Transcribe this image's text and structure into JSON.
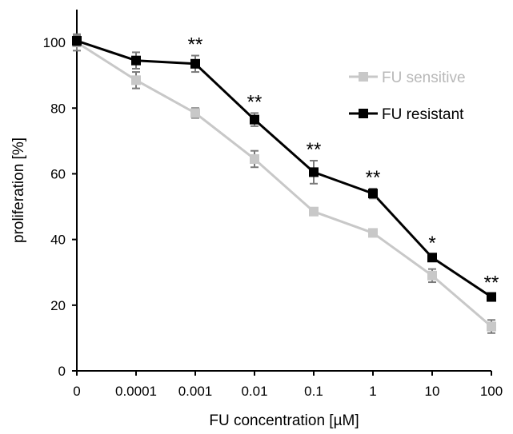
{
  "chart_data": {
    "type": "line",
    "title": "",
    "xlabel": "FU concentration [µM]",
    "ylabel": "proliferation [%]",
    "categories": [
      "0",
      "0.0001",
      "0.001",
      "0.01",
      "0.1",
      "1",
      "10",
      "100"
    ],
    "ylim": [
      0,
      110
    ],
    "yticks": [
      0,
      20,
      40,
      60,
      80,
      100
    ],
    "grid": false,
    "legend_position": "top-right",
    "series": [
      {
        "name": "FU sensitive",
        "color": "#c8c8c8",
        "marker": "square",
        "values": [
          100,
          88.5,
          78.5,
          64.5,
          48.5,
          42,
          29,
          13.5
        ],
        "errors": [
          2.5,
          2.5,
          1.5,
          2.5,
          1,
          1,
          2,
          2
        ]
      },
      {
        "name": "FU resistant",
        "color": "#000000",
        "marker": "square",
        "values": [
          100.5,
          94.5,
          93.5,
          76.5,
          60.5,
          54,
          34.5,
          22.5
        ],
        "errors": [
          1.5,
          2.5,
          2.5,
          2,
          3.5,
          1.5,
          1,
          1
        ]
      }
    ],
    "annotations": [
      "",
      "",
      "**",
      "**",
      "**",
      "**",
      "*",
      "**"
    ]
  }
}
